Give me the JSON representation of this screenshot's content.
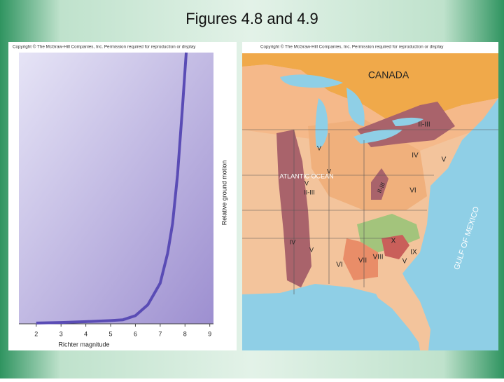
{
  "title": "Figures 4.8 and 4.9",
  "chart_data": {
    "type": "line",
    "copyright": "Copyright © The McGraw-Hill Companies, Inc. Permission required for reproduction or display",
    "x_label": "Richter magnitude",
    "y_label": "Relative ground motion",
    "x": [
      2,
      3,
      4,
      5,
      5.5,
      6,
      6.5,
      7,
      7.3,
      7.5,
      7.7,
      7.9,
      8.05
    ],
    "series": [
      {
        "color": "#5a4cb5",
        "values": [
          0.3,
          0.5,
          0.8,
          1.2,
          1.5,
          3,
          7,
          15,
          26,
          37,
          55,
          80,
          100
        ]
      }
    ],
    "xlim": [
      1.3,
      9.15
    ],
    "ylim": [
      0,
      100
    ],
    "xticks": [
      2,
      3,
      4,
      5,
      6,
      7,
      8,
      9
    ]
  },
  "map": {
    "copyright": "Copyright © The McGraw-Hill Companies, Inc. Permission required for reproduction or display",
    "labels": [
      "CANADA",
      "II-III",
      "IV",
      "V",
      "V",
      "V",
      "V",
      "VI",
      "II-III",
      "II-III",
      "IV",
      "V",
      "VI",
      "VII",
      "VIII",
      "X",
      "IX",
      "V",
      "ATLANTIC OCEAN",
      "GULF OF MEXICO"
    ]
  }
}
